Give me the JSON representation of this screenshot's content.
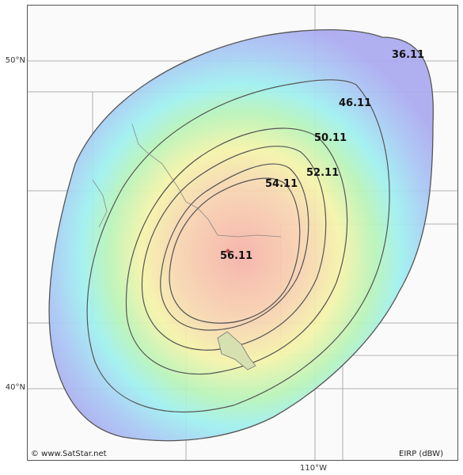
{
  "map": {
    "latitude_labels": [
      "50°N",
      "40°N"
    ],
    "longitude_labels": [
      "110°W"
    ],
    "copyright": "© www.SatStar.net",
    "legend_unit": "EIRP (dBW)",
    "contour_levels": [
      "56.11",
      "54.11",
      "52.11",
      "50.11",
      "46.11",
      "36.11"
    ]
  },
  "colors": {
    "outer": "#aaaaf0",
    "mid": "#9ef0f0",
    "inner": "#f4f4a8",
    "peak": "#f6b8b0",
    "contour_line": "#555555",
    "grid": "#999999"
  }
}
